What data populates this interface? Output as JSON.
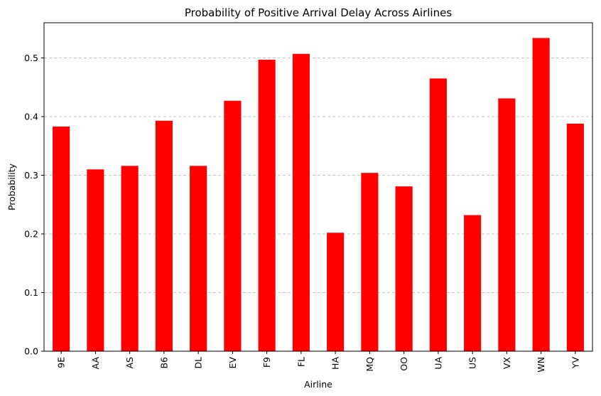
{
  "chart_data": {
    "type": "bar",
    "title": "Probability of Positive Arrival Delay Across Airlines",
    "xlabel": "Airline",
    "ylabel": "Probability",
    "categories": [
      "9E",
      "AA",
      "AS",
      "B6",
      "DL",
      "EV",
      "F9",
      "FL",
      "HA",
      "MQ",
      "OO",
      "UA",
      "US",
      "VX",
      "WN",
      "YV"
    ],
    "values": [
      0.383,
      0.31,
      0.316,
      0.393,
      0.316,
      0.427,
      0.497,
      0.507,
      0.202,
      0.304,
      0.281,
      0.465,
      0.232,
      0.431,
      0.534,
      0.388
    ],
    "ylim": [
      0,
      0.56
    ],
    "yticks": [
      0.0,
      0.1,
      0.2,
      0.3,
      0.4,
      0.5
    ],
    "ytick_labels": [
      "0.0",
      "0.1",
      "0.2",
      "0.3",
      "0.4",
      "0.5"
    ],
    "grid": "y-dashed",
    "bar_color": "#ff0000",
    "grid_color": "#c8c8c8"
  }
}
